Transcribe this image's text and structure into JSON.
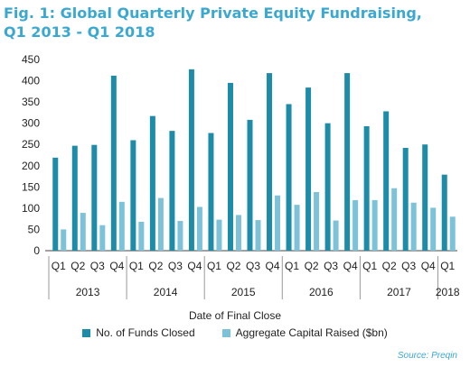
{
  "title": {
    "line1": "Fig. 1: Global Quarterly Private Equity Fundraising,",
    "line2": "Q1 2013 - Q1 2018"
  },
  "source": "Source: Preqin",
  "chart_data": {
    "type": "bar",
    "xlabel": "Date of Final Close",
    "ylabel": "",
    "ylim": [
      0,
      450
    ],
    "yticks": [
      0,
      50,
      100,
      150,
      200,
      250,
      300,
      350,
      400,
      450
    ],
    "grid": false,
    "legend_position": "bottom",
    "categories": [
      "Q1",
      "Q2",
      "Q3",
      "Q4",
      "Q1",
      "Q2",
      "Q3",
      "Q4",
      "Q1",
      "Q2",
      "Q3",
      "Q4",
      "Q1",
      "Q2",
      "Q3",
      "Q4",
      "Q1",
      "Q2",
      "Q3",
      "Q4",
      "Q1"
    ],
    "years": [
      {
        "label": "2013",
        "quarters": 4
      },
      {
        "label": "2014",
        "quarters": 4
      },
      {
        "label": "2015",
        "quarters": 4
      },
      {
        "label": "2016",
        "quarters": 4
      },
      {
        "label": "2017",
        "quarters": 4
      },
      {
        "label": "2018",
        "quarters": 1
      }
    ],
    "series": [
      {
        "name": "No. of Funds Closed",
        "color": "#1c8ca8",
        "values": [
          219,
          247,
          249,
          412,
          260,
          317,
          282,
          427,
          277,
          395,
          308,
          418,
          345,
          384,
          300,
          418,
          293,
          328,
          242,
          250,
          179
        ]
      },
      {
        "name": "Aggregate Capital Raised ($bn)",
        "color": "#7cc3da",
        "values": [
          50,
          89,
          60,
          115,
          68,
          124,
          70,
          103,
          73,
          84,
          72,
          130,
          108,
          138,
          71,
          119,
          119,
          147,
          113,
          101,
          80
        ]
      }
    ]
  }
}
